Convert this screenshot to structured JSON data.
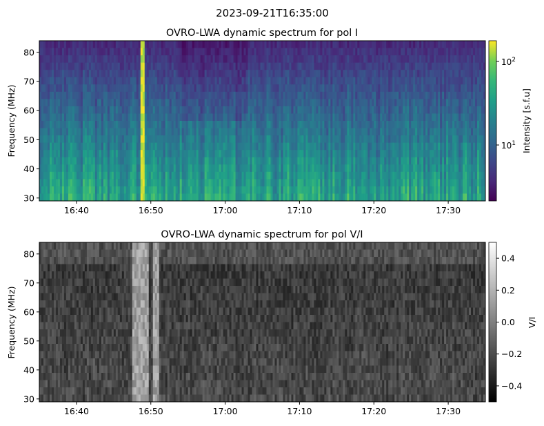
{
  "suptitle": "2023-09-21T16:35:00",
  "chart_data": [
    {
      "type": "heatmap",
      "title": "OVRO-LWA dynamic spectrum for pol I",
      "xlabel": "",
      "ylabel": "Frequency (MHz)",
      "xlim": [
        "16:35",
        "17:35"
      ],
      "ylim": [
        29,
        84
      ],
      "x_ticks": [
        "16:40",
        "16:50",
        "17:00",
        "17:10",
        "17:20",
        "17:30"
      ],
      "y_ticks": [
        "30",
        "40",
        "50",
        "60",
        "70",
        "80"
      ],
      "colormap": "viridis",
      "colorbar": {
        "label": "Intensity [s.f.u]",
        "scale": "log",
        "range": [
          2.5,
          170
        ],
        "ticks": [
          "10^2",
          "10^1"
        ]
      },
      "features": [
        {
          "time": "16:49",
          "description": "bright broadband vertical stripe"
        }
      ]
    },
    {
      "type": "heatmap",
      "title": "OVRO-LWA dynamic spectrum for pol V/I",
      "xlabel": "",
      "ylabel": "Frequency (MHz)",
      "xlim": [
        "16:35",
        "17:35"
      ],
      "ylim": [
        29,
        84
      ],
      "x_ticks": [
        "16:40",
        "16:50",
        "17:00",
        "17:10",
        "17:20",
        "17:30"
      ],
      "y_ticks": [
        "30",
        "40",
        "50",
        "60",
        "70",
        "80"
      ],
      "colormap": "gray",
      "colorbar": {
        "label": "V/I",
        "scale": "linear",
        "range": [
          -0.5,
          0.5
        ],
        "ticks": [
          "0.4",
          "0.2",
          "0.0",
          "−0.2",
          "−0.4"
        ]
      }
    }
  ]
}
